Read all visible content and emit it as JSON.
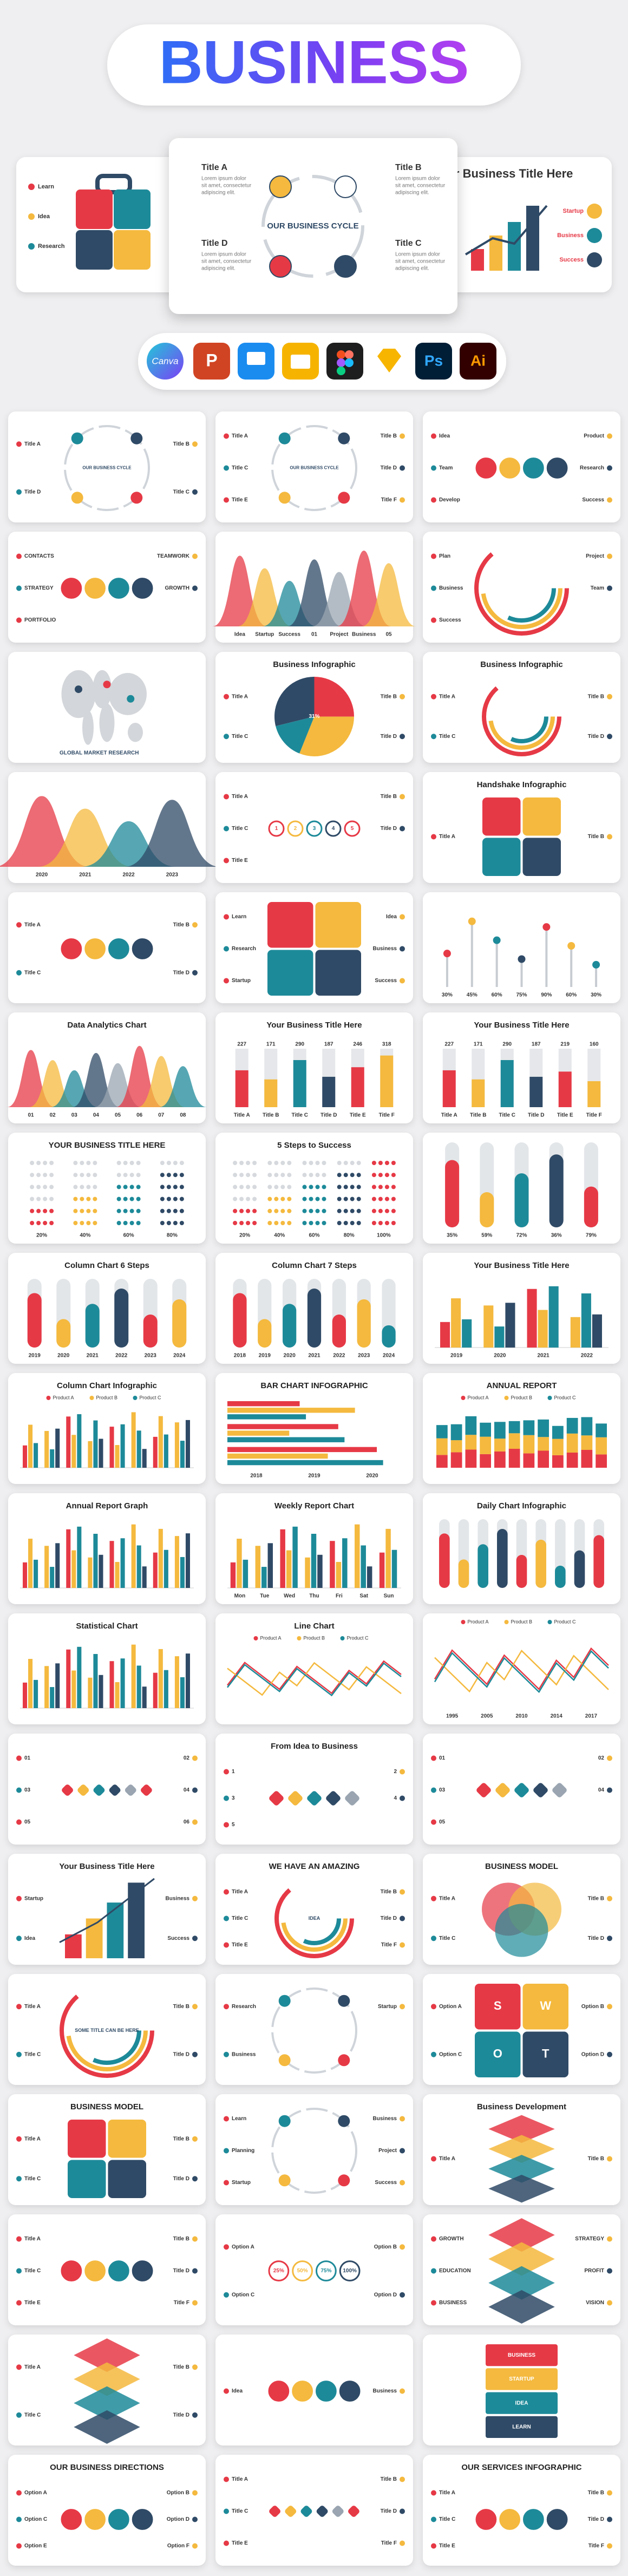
{
  "header": {
    "title": "BUSINESS"
  },
  "hero": {
    "left": {
      "labels": [
        "Learn",
        "Idea",
        "Research"
      ]
    },
    "center": {
      "title": "OUR BUSINESS CYCLE",
      "items": [
        {
          "title": "Title A",
          "lines": [
            "Lorem ipsum dolor",
            "sit amet, consectetur",
            "adipiscing elit."
          ]
        },
        {
          "title": "Title B",
          "lines": [
            "Lorem ipsum dolor",
            "sit amet, consectetur",
            "adipiscing elit."
          ]
        },
        {
          "title": "Title D",
          "lines": [
            "Lorem ipsum dolor",
            "sit amet, consectetur",
            "adipiscing elit."
          ]
        },
        {
          "title": "Title C",
          "lines": [
            "Lorem ipsum dolor",
            "sit amet, consectetur",
            "adipiscing elit."
          ]
        }
      ]
    },
    "right": {
      "title": "Your Business Title Here",
      "labels": [
        "Startup",
        "Business",
        "Success"
      ]
    }
  },
  "apps": [
    "Canva",
    "P",
    "Ps",
    "Ai"
  ],
  "slides": [
    {
      "labels": [
        "Title A",
        "Title B",
        "Title D",
        "Title C"
      ],
      "center": "OUR BUSINESS CYCLE"
    },
    {
      "labels": [
        "Title A",
        "Title B",
        "Title C",
        "Title D",
        "Title E",
        "Title F"
      ],
      "center": "OUR BUSINESS CYCLE"
    },
    {
      "labels": [
        "Idea",
        "Product",
        "Team",
        "Research",
        "Develop",
        "Success"
      ]
    },
    {
      "labels": [
        "CONTACTS",
        "TEAMWORK",
        "STRATEGY",
        "GROWTH",
        "PORTFOLIO"
      ]
    },
    {
      "labels": [
        "Idea",
        "Startup",
        "Success",
        "01",
        "Project",
        "Business",
        "05"
      ]
    },
    {
      "labels": [
        "Plan",
        "Project",
        "Business",
        "Team",
        "Success"
      ]
    },
    {
      "center": "GLOBAL MARKET RESEARCH"
    },
    {
      "title": "Business Infographic",
      "labels": [
        "Title A",
        "Title B",
        "Title C",
        "Title D"
      ],
      "center": "31%"
    },
    {
      "title": "Business Infographic",
      "labels": [
        "Title A",
        "Title B",
        "Title C",
        "Title D"
      ]
    },
    {
      "labels": [
        "2020",
        "2021",
        "2022",
        "2023"
      ]
    },
    {
      "labels": [
        "Title A",
        "Title B",
        "Title C",
        "Title D",
        "Title E"
      ],
      "letters": [
        "1",
        "2",
        "3",
        "4",
        "5"
      ]
    },
    {
      "title": "Handshake Infographic",
      "labels": [
        "Title A",
        "Title B"
      ]
    },
    {
      "labels": [
        "Title A",
        "Title B",
        "Title C",
        "Title D"
      ]
    },
    {
      "labels": [
        "Learn",
        "Idea",
        "Research",
        "Business",
        "Startup",
        "Success"
      ]
    },
    {
      "labels": [
        "30%",
        "45%",
        "60%",
        "75%",
        "90%",
        "60%",
        "30%"
      ]
    },
    {
      "title": "Data Analytics Chart",
      "labels": [
        "01",
        "02",
        "03",
        "04",
        "05",
        "06",
        "07",
        "08"
      ]
    },
    {
      "title": "Your Business Title Here",
      "labels": [
        "Title A",
        "Title B",
        "Title C",
        "Title D",
        "Title E",
        "Title F"
      ],
      "values": [
        227,
        171,
        290,
        187,
        246,
        318
      ]
    },
    {
      "title": "Your Business Title Here",
      "labels": [
        "Title A",
        "Title B",
        "Title C",
        "Title D",
        "Title E",
        "Title F"
      ],
      "values": [
        227,
        171,
        290,
        187,
        219,
        160
      ]
    },
    {
      "title": "YOUR BUSINESS TITLE HERE",
      "labels": [
        "20%",
        "40%",
        "60%",
        "80%"
      ]
    },
    {
      "title": "5 Steps to Success",
      "labels": [
        "20%",
        "40%",
        "60%",
        "80%",
        "100%"
      ]
    },
    {
      "labels": [
        "35%",
        "59%",
        "72%",
        "36%",
        "79%"
      ]
    },
    {
      "title": "Column Chart 6 Steps",
      "labels": [
        "2019",
        "2020",
        "2021",
        "2022",
        "2023",
        "2024"
      ]
    },
    {
      "title": "Column Chart 7 Steps",
      "labels": [
        "2018",
        "2019",
        "2020",
        "2021",
        "2022",
        "2023",
        "2024"
      ]
    },
    {
      "title": "Your Business Title Here",
      "labels": [
        "2019",
        "2020",
        "2021",
        "2022"
      ]
    },
    {
      "title": "Column Chart Infographic",
      "legend": [
        "Product A",
        "Product B",
        "Product C"
      ]
    },
    {
      "title": "BAR CHART INFOGRAPHIC",
      "labels": [
        "2018",
        "2019",
        "2020"
      ]
    },
    {
      "title": "ANNUAL REPORT",
      "legend": [
        "Product A",
        "Product B",
        "Product C"
      ]
    },
    {
      "title": "Annual Report Graph"
    },
    {
      "title": "Weekly Report Chart",
      "labels": [
        "Mon",
        "Tue",
        "Wed",
        "Thu",
        "Fri",
        "Sat",
        "Sun"
      ]
    },
    {
      "title": "Daily Chart Infographic"
    },
    {
      "title": "Statistical Chart"
    },
    {
      "title": "Line Chart",
      "legend": [
        "Product A",
        "Product B",
        "Product C"
      ]
    },
    {
      "legend": [
        "Product A",
        "Product B",
        "Product C"
      ],
      "labels": [
        "1995",
        "2005",
        "2010",
        "2014",
        "2017"
      ]
    },
    {
      "labels": [
        "01",
        "02",
        "03",
        "04",
        "05",
        "06"
      ]
    },
    {
      "title": "From Idea to Business",
      "labels": [
        "1",
        "2",
        "3",
        "4",
        "5"
      ]
    },
    {
      "labels": [
        "01",
        "02",
        "03",
        "04",
        "05"
      ]
    },
    {
      "title": "Your Business Title Here",
      "labels": [
        "Startup",
        "Business",
        "Idea",
        "Success"
      ]
    },
    {
      "title": "WE HAVE AN AMAZING",
      "center": "IDEA",
      "labels": [
        "Title A",
        "Title B",
        "Title C",
        "Title D",
        "Title E",
        "Title F"
      ]
    },
    {
      "title": "BUSINESS MODEL",
      "labels": [
        "Title A",
        "Title B",
        "Title C",
        "Title D"
      ]
    },
    {
      "center": "SOME TITLE CAN BE HERE",
      "labels": [
        "Title A",
        "Title B",
        "Title C",
        "Title D"
      ]
    },
    {
      "labels": [
        "Research",
        "Startup",
        "Business"
      ]
    },
    {
      "labels": [
        "Option A",
        "Option B",
        "Option C",
        "Option D"
      ],
      "letters": [
        "S",
        "W",
        "O",
        "T"
      ]
    },
    {
      "title": "BUSINESS MODEL",
      "labels": [
        "Title A",
        "Title B",
        "Title C",
        "Title D"
      ]
    },
    {
      "labels": [
        "Learn",
        "Business",
        "Planning",
        "Project",
        "Startup",
        "Success"
      ]
    },
    {
      "title": "Business Development",
      "labels": [
        "Title A",
        "Title B"
      ]
    },
    {
      "labels": [
        "Title A",
        "Title B",
        "Title C",
        "Title D",
        "Title E",
        "Title F"
      ]
    },
    {
      "labels": [
        "Option A",
        "Option B",
        "Option C",
        "Option D"
      ],
      "letters": [
        "25%",
        "50%",
        "75%",
        "100%"
      ]
    },
    {
      "labels": [
        "GROWTH",
        "STRATEGY",
        "EDUCATION",
        "PROFIT",
        "BUSINESS",
        "VISION"
      ]
    },
    {
      "labels": [
        "Title A",
        "Title B",
        "Title C",
        "Title D"
      ]
    },
    {
      "labels": [
        "Idea",
        "Business"
      ]
    },
    {
      "letters": [
        "BUSINESS",
        "STARTUP",
        "IDEA",
        "LEARN"
      ]
    },
    {
      "title": "OUR BUSINESS DIRECTIONS",
      "labels": [
        "Option A",
        "Option B",
        "Option C",
        "Option D",
        "Option E",
        "Option F"
      ]
    },
    {
      "labels": [
        "Title A",
        "Title B",
        "Title C",
        "Title D",
        "Title E",
        "Title F"
      ]
    },
    {
      "title": "OUR SERVICES INFOGRAPHIC",
      "labels": [
        "Title A",
        "Title B",
        "Title C",
        "Title D",
        "Title E",
        "Title F"
      ]
    }
  ]
}
